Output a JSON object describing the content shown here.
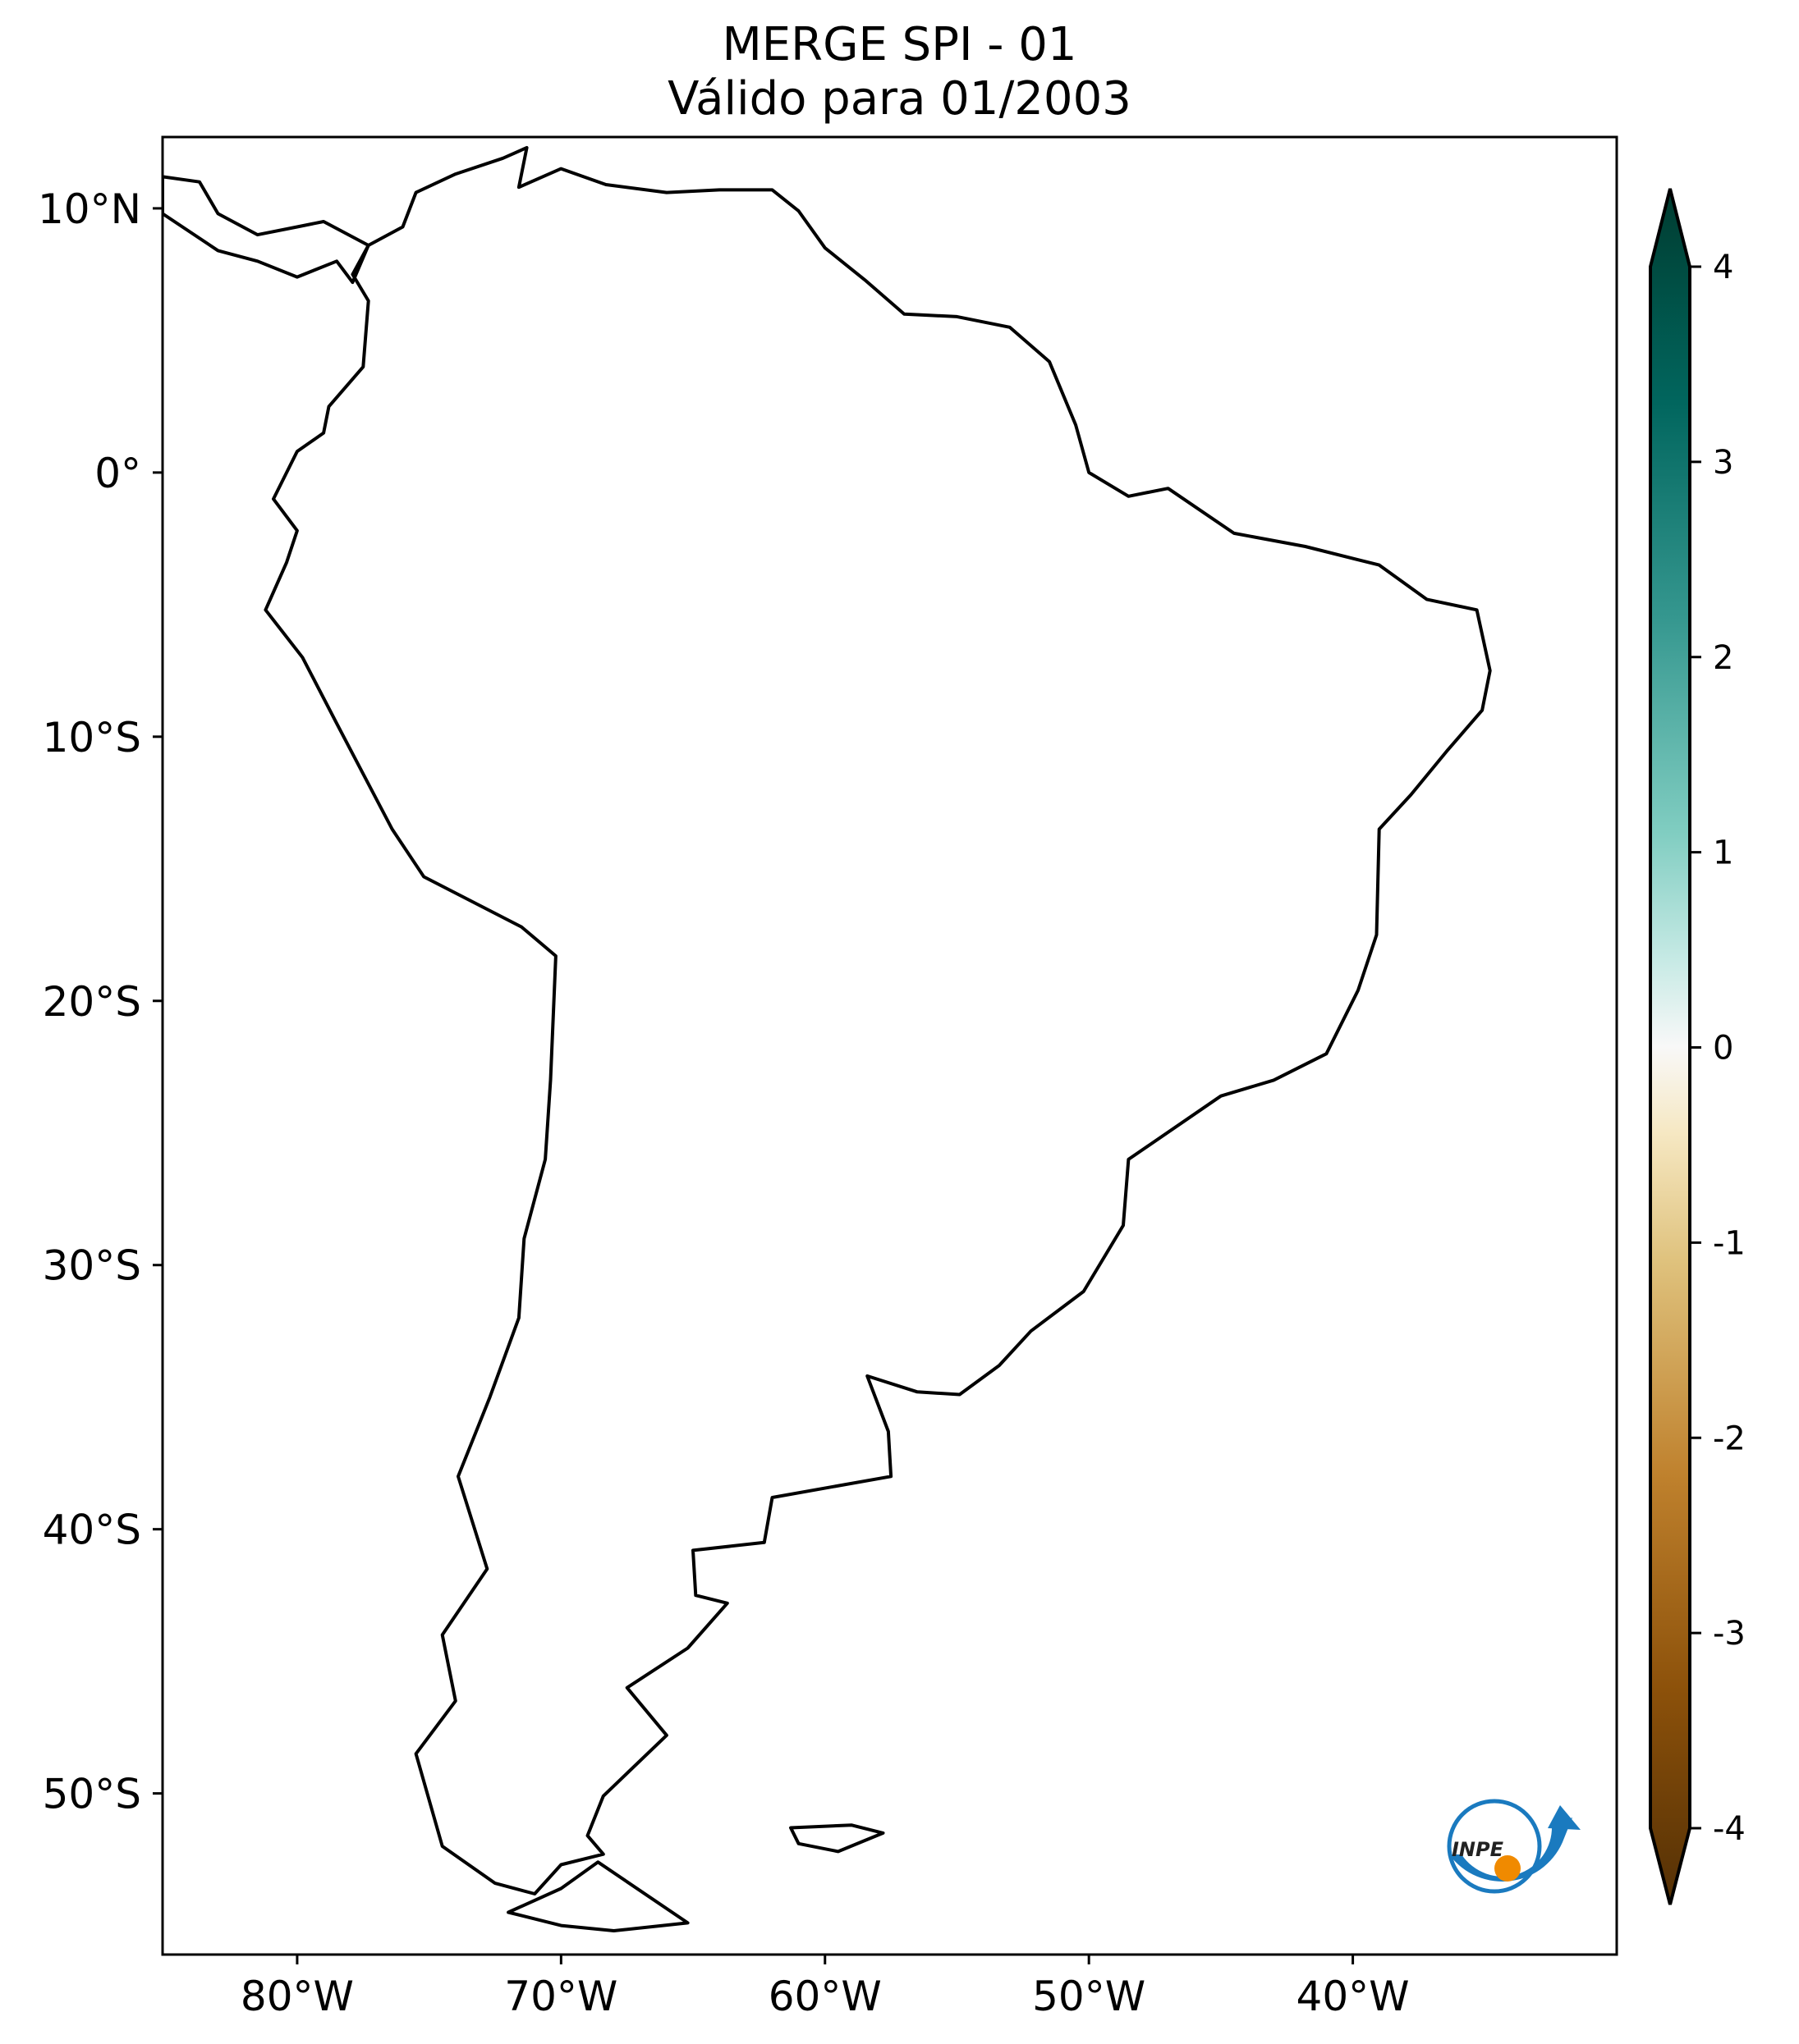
{
  "chart_data": {
    "type": "heatmap",
    "title": "MERGE   SPI - 01",
    "subtitle": "Válido para 01/2003",
    "variable": "SPI",
    "lon_range": [
      -85,
      -30
    ],
    "lat_range": [
      -56,
      12.7
    ],
    "xticks": [
      {
        "value": -80,
        "label": "80°W"
      },
      {
        "value": -70,
        "label": "70°W"
      },
      {
        "value": -60,
        "label": "60°W"
      },
      {
        "value": -50,
        "label": "50°W"
      },
      {
        "value": -40,
        "label": "40°W"
      }
    ],
    "yticks": [
      {
        "value": 10,
        "label": "10°N"
      },
      {
        "value": 0,
        "label": "0°"
      },
      {
        "value": -10,
        "label": "10°S"
      },
      {
        "value": -20,
        "label": "20°S"
      },
      {
        "value": -30,
        "label": "30°S"
      },
      {
        "value": -40,
        "label": "40°S"
      },
      {
        "value": -50,
        "label": "50°S"
      }
    ],
    "colorbar": {
      "range": [
        -4,
        4
      ],
      "extend": "both",
      "colormap": "BrBG",
      "ticks": [
        {
          "value": 4,
          "label": "4"
        },
        {
          "value": 3,
          "label": "3"
        },
        {
          "value": 2,
          "label": "2"
        },
        {
          "value": 1,
          "label": "1"
        },
        {
          "value": 0,
          "label": "0"
        },
        {
          "value": -1,
          "label": "-1"
        },
        {
          "value": -2,
          "label": "-2"
        },
        {
          "value": -3,
          "label": "-3"
        },
        {
          "value": -4,
          "label": "-4"
        }
      ]
    }
  },
  "logo": {
    "text": "INPE"
  },
  "colors": {
    "dry_dark": "#543005",
    "dry": "#bf812d",
    "dry_light": "#f6e8c3",
    "neutral": "#f5f5f5",
    "wet_light": "#c7eae5",
    "wet": "#35978f",
    "wet_dark": "#003c30"
  }
}
